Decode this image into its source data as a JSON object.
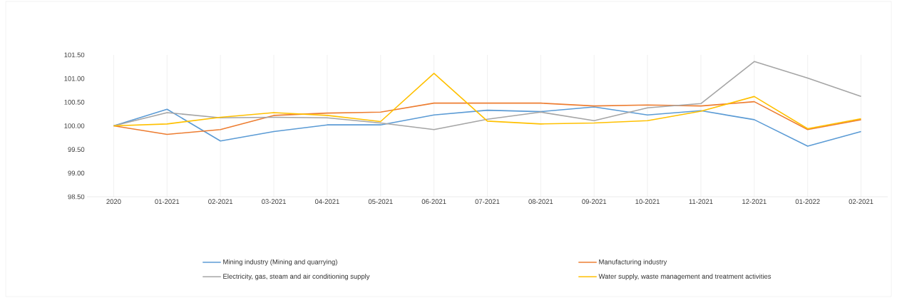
{
  "chart_data": {
    "type": "line",
    "categories": [
      "2020",
      "01-2021",
      "02-2021",
      "03-2021",
      "04-2021",
      "05-2021",
      "06-2021",
      "07-2021",
      "08-2021",
      "09-2021",
      "10-2021",
      "11-2021",
      "12-2021",
      "01-2022",
      "02-2021"
    ],
    "series": [
      {
        "name": "Mining industry (Mining and quarrying)",
        "color": "#5b9bd5",
        "values": [
          100.0,
          100.35,
          99.68,
          99.88,
          100.02,
          100.02,
          100.23,
          100.33,
          100.3,
          100.4,
          100.23,
          100.32,
          100.13,
          99.57,
          99.88
        ]
      },
      {
        "name": "Manufacturing industry",
        "color": "#ed7d31",
        "values": [
          100.0,
          99.82,
          99.92,
          100.22,
          100.27,
          100.29,
          100.48,
          100.48,
          100.48,
          100.42,
          100.44,
          100.42,
          100.51,
          99.92,
          100.13
        ]
      },
      {
        "name": "Electricity, gas, steam and air conditioning supply",
        "color": "#a5a5a5",
        "values": [
          100.0,
          100.28,
          100.17,
          100.18,
          100.17,
          100.06,
          99.92,
          100.14,
          100.29,
          100.11,
          100.38,
          100.47,
          101.36,
          101.01,
          100.62
        ]
      },
      {
        "name": "Water supply, waste management and treatment activities",
        "color": "#ffc000",
        "values": [
          100.0,
          100.04,
          100.18,
          100.28,
          100.22,
          100.09,
          101.11,
          100.1,
          100.04,
          100.06,
          100.11,
          100.31,
          100.62,
          99.94,
          100.15
        ]
      }
    ],
    "ylim": [
      98.5,
      101.5
    ],
    "yticks": [
      {
        "value": 98.5,
        "label": "98.50"
      },
      {
        "value": 99.0,
        "label": "99.00"
      },
      {
        "value": 99.5,
        "label": "99.50"
      },
      {
        "value": 100.0,
        "label": "100.00"
      },
      {
        "value": 100.5,
        "label": "100.50"
      },
      {
        "value": 101.0,
        "label": "101.00"
      },
      {
        "value": 101.5,
        "label": "101.50"
      }
    ],
    "grid": "x",
    "legend": "bottom",
    "marker": "none",
    "line_style": "solid"
  }
}
